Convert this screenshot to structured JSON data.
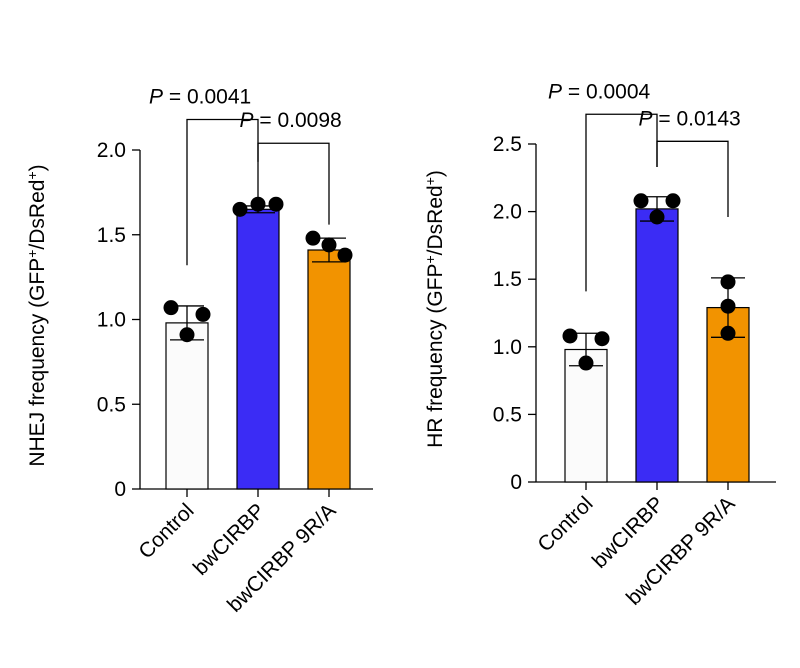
{
  "chart_data": [
    {
      "type": "bar",
      "categories": [
        "Control",
        "bwCIRBP",
        "bwCIRBP 9R/A"
      ],
      "values": [
        0.98,
        1.65,
        1.41
      ],
      "errors": [
        0.1,
        0.02,
        0.07
      ],
      "points": [
        [
          1.07,
          1.03,
          0.91
        ],
        [
          1.65,
          1.68,
          1.68
        ],
        [
          1.48,
          1.38,
          1.44
        ]
      ],
      "colors": [
        "#fbfbfb",
        "#3b2cf5",
        "#f29300"
      ],
      "ylabel_main": "NHEJ frequency (GFP",
      "ylabel_sup1": "+",
      "ylabel_mid": "/DsRed",
      "ylabel_sup2": "+",
      "ylabel_end": ")",
      "ylim": [
        0,
        2.0
      ],
      "ytick_labels": [
        "0",
        "0.5",
        "1.0",
        "1.5",
        "2.0"
      ],
      "yticks": [
        0,
        0.5,
        1.0,
        1.5,
        2.0
      ],
      "comparisons": [
        {
          "p_italic": "P",
          "p_rest": " = 0.0041",
          "from": 0,
          "to": 1,
          "y_left": 1.32,
          "y_top": 2.18,
          "y_right": 1.72
        },
        {
          "p_italic": "P",
          "p_rest": " = 0.0098",
          "from": 1,
          "to": 2,
          "y_left": 1.93,
          "y_top": 2.04,
          "y_right": 1.56
        }
      ]
    },
    {
      "type": "bar",
      "categories": [
        "Control",
        "bwCIRBP",
        "bwCIRBP 9R/A"
      ],
      "values": [
        0.98,
        2.02,
        1.29
      ],
      "errors": [
        0.12,
        0.09,
        0.22
      ],
      "points": [
        [
          1.08,
          1.06,
          0.88
        ],
        [
          2.08,
          2.08,
          1.96
        ],
        [
          1.48,
          1.3,
          1.1
        ]
      ],
      "colors": [
        "#fbfbfb",
        "#3b2cf5",
        "#f29300"
      ],
      "ylabel_main": "HR frequency (GFP",
      "ylabel_sup1": "+",
      "ylabel_mid": "/DsRed",
      "ylabel_sup2": "+",
      "ylabel_end": ")",
      "ylim": [
        0,
        2.5
      ],
      "ytick_labels": [
        "0",
        "0.5",
        "1.0",
        "1.5",
        "2.0",
        "2.5"
      ],
      "yticks": [
        0,
        0.5,
        1.0,
        1.5,
        2.0,
        2.5
      ],
      "comparisons": [
        {
          "p_italic": "P",
          "p_rest": " = 0.0004",
          "from": 0,
          "to": 1,
          "y_left": 1.41,
          "y_top": 2.72,
          "y_right": 2.33
        },
        {
          "p_italic": "P",
          "p_rest": " = 0.0143",
          "from": 1,
          "to": 2,
          "y_left": 2.33,
          "y_top": 2.52,
          "y_right": 1.96
        }
      ]
    }
  ]
}
